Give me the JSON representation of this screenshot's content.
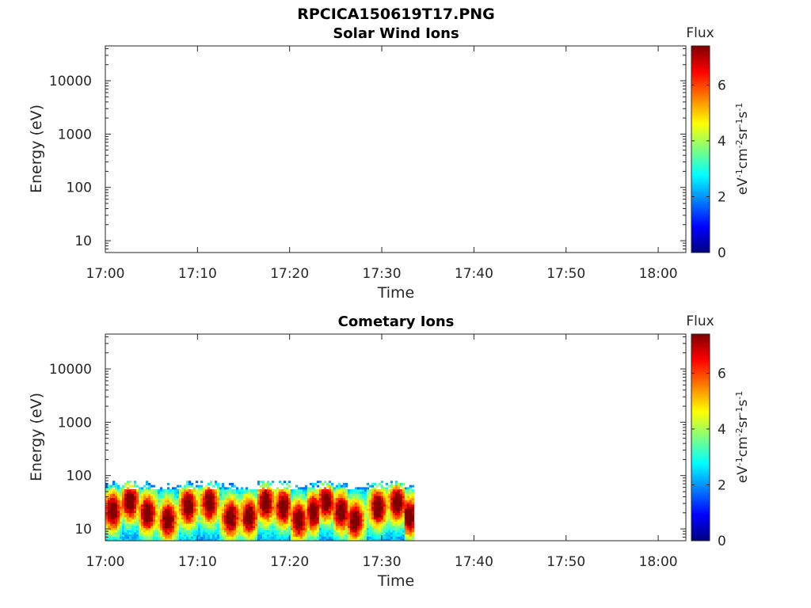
{
  "figure_title": "RPCICA150619T17.PNG",
  "colormap": [
    "#00007f",
    "#0000ff",
    "#007fff",
    "#00ffff",
    "#7fff7f",
    "#ffff00",
    "#ff7f00",
    "#ff0000",
    "#7f0000"
  ],
  "chart_data": [
    {
      "type": "heatmap",
      "title": "Solar Wind Ions",
      "xlabel": "Time",
      "ylabel": "Energy (eV)",
      "x_ticks": [
        "17:00",
        "17:10",
        "17:20",
        "17:30",
        "17:40",
        "17:50",
        "18:00"
      ],
      "y_ticks": [
        "10",
        "100",
        "1000",
        "10000"
      ],
      "y_scale": "log",
      "ylim": [
        6,
        45000
      ],
      "xlim_minutes": [
        0,
        63
      ],
      "colorbar": {
        "title": "Flux",
        "label": "eV⁻¹cm⁻²sr⁻¹s⁻¹",
        "ticks": [
          "0",
          "2",
          "4",
          "6"
        ],
        "range": [
          0,
          7.4
        ]
      },
      "data_present": false,
      "flux_columns": []
    },
    {
      "type": "heatmap",
      "title": "Cometary Ions",
      "xlabel": "Time",
      "ylabel": "Energy (eV)",
      "x_ticks": [
        "17:00",
        "17:10",
        "17:20",
        "17:30",
        "17:40",
        "17:50",
        "18:00"
      ],
      "y_ticks": [
        "10",
        "100",
        "1000",
        "10000"
      ],
      "y_scale": "log",
      "ylim": [
        6,
        45000
      ],
      "xlim_minutes": [
        0,
        63
      ],
      "colorbar": {
        "title": "Flux",
        "label": "eV⁻¹cm⁻²sr⁻¹s⁻¹",
        "ticks": [
          "0",
          "2",
          "4",
          "6"
        ],
        "range": [
          0,
          7.4
        ]
      },
      "data_present": true,
      "data_time_range_minutes": [
        0,
        33.5
      ],
      "energy_range_ev": [
        6,
        80
      ],
      "peak_flux_minutes": [
        0.8,
        2.7,
        4.6,
        6.8,
        9.0,
        11.3,
        13.6,
        15.6,
        17.4,
        19.3,
        21.0,
        22.6,
        24.0,
        25.6,
        27.1,
        29.6,
        31.7,
        33.0
      ]
    }
  ]
}
